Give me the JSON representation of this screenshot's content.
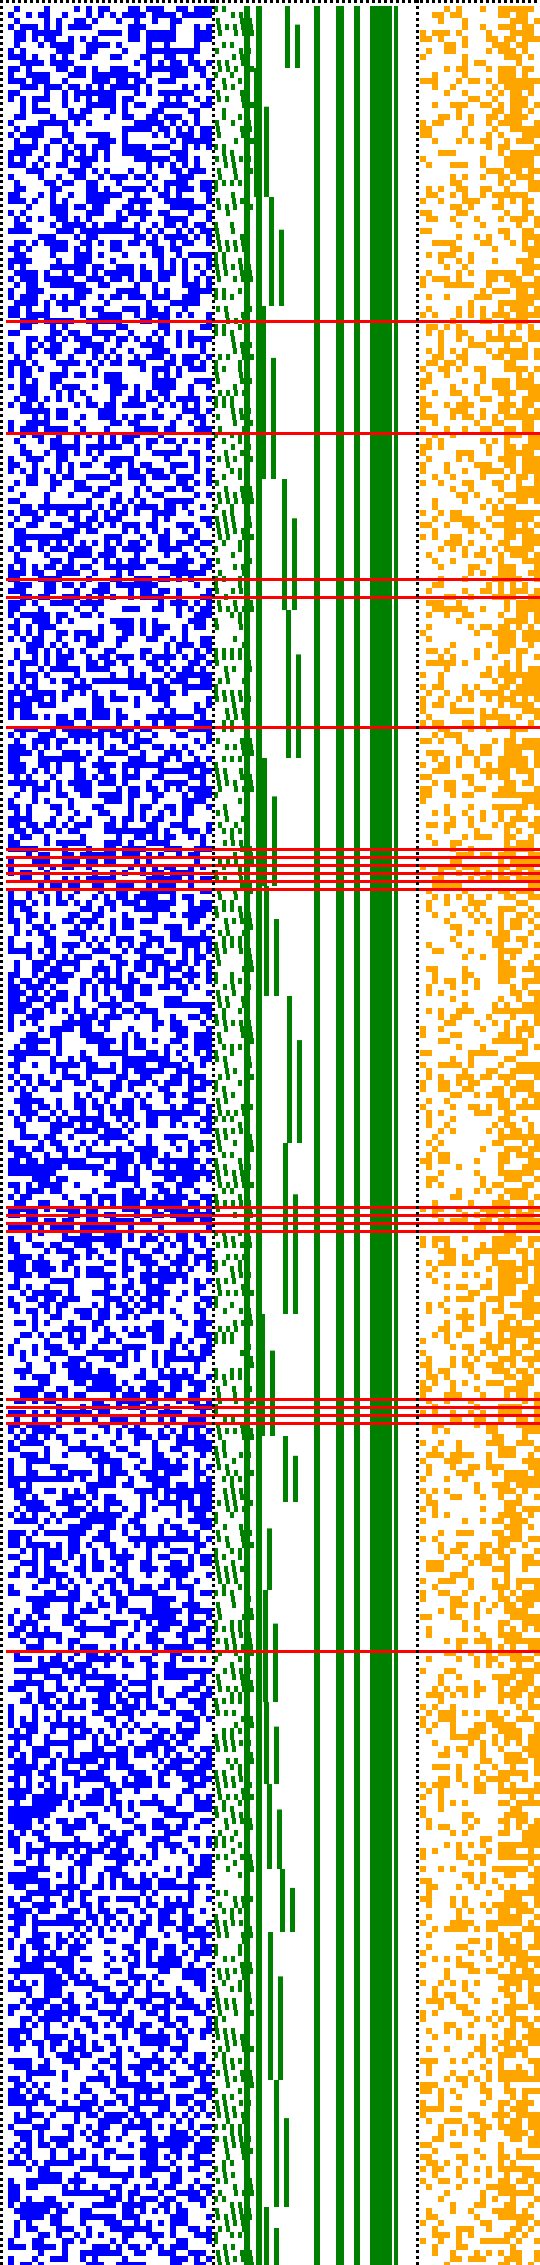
{
  "colors": {
    "background": "#ffffff",
    "blue": "#0000ff",
    "green": "#008000",
    "orange": "#ffa500",
    "red": "#ff0000",
    "border": "#000000"
  },
  "panels": [
    {
      "name": "blue-grid-panel",
      "pattern": "noise",
      "density": 0.5
    },
    {
      "name": "green-staircase-panel",
      "pattern": "staircase-bars"
    },
    {
      "name": "orange-grid-panel",
      "pattern": "noise",
      "density": 0.3
    }
  ],
  "red_markers": {
    "count": 24
  }
}
